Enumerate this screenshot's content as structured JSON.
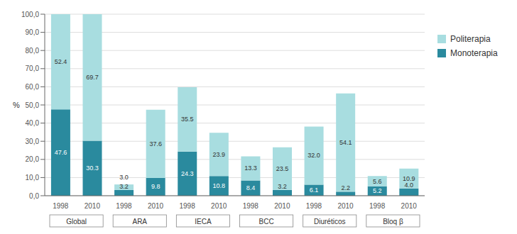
{
  "chart_data": {
    "type": "bar",
    "stacked": true,
    "categories": [
      "1998",
      "2010",
      "1998",
      "2010",
      "1998",
      "2010",
      "1998",
      "2010",
      "1998",
      "2010",
      "1998",
      "2010"
    ],
    "groups": [
      "Global",
      "ARA",
      "IECA",
      "BCC",
      "Diuréticos",
      "Bloq β"
    ],
    "ylabel": "%",
    "series": [
      {
        "name": "Monoterapia",
        "color": "#2a8a9e",
        "values": [
          47.6,
          30.3,
          3.2,
          9.8,
          24.3,
          10.8,
          8.4,
          3.2,
          6.1,
          2.2,
          5.2,
          4.0
        ],
        "value_labels": [
          "47.6",
          "30.3",
          "3.2",
          "9.8",
          "24.3",
          "10.8",
          "8.4",
          "3.2",
          "6.1",
          "2.2",
          "5.2",
          "4.0"
        ]
      },
      {
        "name": "Politerapia",
        "color": "#a8dde0",
        "values": [
          52.4,
          69.7,
          3.0,
          37.6,
          35.5,
          23.9,
          13.3,
          23.5,
          32.0,
          54.1,
          5.6,
          10.9
        ],
        "value_labels": [
          "52.4",
          "69.7",
          "3.0",
          "37.6",
          "35.5",
          "23.9",
          "13.3",
          "23.5",
          "32.0",
          "54.1",
          "5.6",
          "10.9"
        ]
      }
    ],
    "ylim": [
      0,
      100
    ],
    "yticks": [
      {
        "value": 0,
        "label": "0,0"
      },
      {
        "value": 10,
        "label": "10,0"
      },
      {
        "value": 20,
        "label": "20,0"
      },
      {
        "value": 30,
        "label": "30,0"
      },
      {
        "value": 40,
        "label": "40,0"
      },
      {
        "value": 50,
        "label": "50,0"
      },
      {
        "value": 60,
        "label": "60,0"
      },
      {
        "value": 70,
        "label": "70,0"
      },
      {
        "value": 80,
        "label": "80,0"
      },
      {
        "value": 90,
        "label": "90,0"
      },
      {
        "value": 100,
        "label": "100,0"
      }
    ],
    "grid": true,
    "legend": "upper right",
    "data_labels": true
  }
}
